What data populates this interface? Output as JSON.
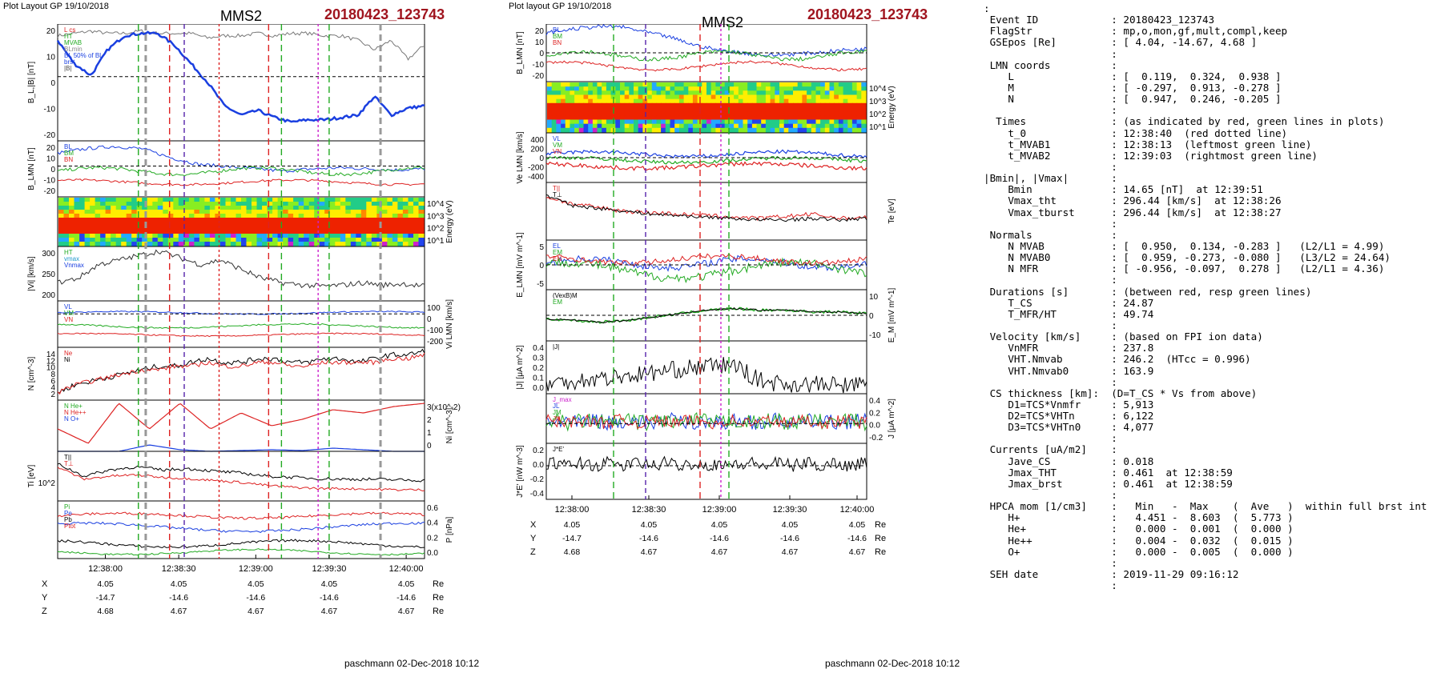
{
  "left_figure": {
    "header": "Plot Layout GP 19/10/2018",
    "title": "MMS2",
    "event": "20180423_123743",
    "footer": "paschmann 02-Dec-2018 10:12",
    "time_ticks": [
      "12:38:00",
      "12:38:30",
      "12:39:00",
      "12:39:30",
      "12:40:00"
    ],
    "ephem": [
      {
        "label": "X",
        "values": [
          "4.05",
          "4.05",
          "4.05",
          "4.05",
          "4.05"
        ],
        "unit": "Re"
      },
      {
        "label": "Y",
        "values": [
          "-14.7",
          "-14.6",
          "-14.6",
          "-14.6",
          "-14.6"
        ],
        "unit": "Re"
      },
      {
        "label": "Z",
        "values": [
          "4.68",
          "4.67",
          "4.67",
          "4.67",
          "4.67"
        ],
        "unit": "Re"
      }
    ],
    "panels": [
      {
        "ylabel": "B_L,|B| [nT]",
        "side": "left",
        "ticks": [
          "20",
          "10",
          "0",
          "-10",
          "-20"
        ],
        "legend": [
          "L cs",
          "HT",
          "MVAB",
          "BLmin",
          "BL 50% of BL",
          "brst",
          "|B|"
        ]
      },
      {
        "ylabel": "B_LMN [nT]",
        "side": "left",
        "ticks": [
          "20",
          "10",
          "0",
          "-10",
          "-20"
        ],
        "legend": [
          "BL",
          "BM",
          "BN"
        ]
      },
      {
        "ylabel": "Energy (eV)",
        "side": "right",
        "ticks": [
          "10^4",
          "10^3",
          "10^2",
          "10^1"
        ]
      },
      {
        "ylabel": "|Vi| [km/s]",
        "side": "left",
        "ticks": [
          "300",
          "250",
          "200"
        ],
        "legend": [
          "HT",
          "vmax",
          "Vnmax"
        ]
      },
      {
        "ylabel": "Vi LMN [km/s]",
        "side": "right",
        "ticks": [
          "100",
          "0",
          "-100",
          "-200"
        ],
        "legend": [
          "VL",
          "VM",
          "VN"
        ]
      },
      {
        "ylabel": "N [cm^-3]",
        "side": "left",
        "ticks": [
          "14",
          "12",
          "10",
          "8",
          "6",
          "4",
          "2"
        ],
        "legend": [
          "Ne",
          "Ni"
        ]
      },
      {
        "ylabel": "Ni [cm^-3]",
        "side": "right",
        "ticks": [
          "3(x10^-2)",
          "2",
          "1",
          "0"
        ],
        "legend": [
          "N He+",
          "N He++",
          "N O+"
        ]
      },
      {
        "ylabel": "Ti [eV]",
        "side": "left",
        "ticks": [
          "10^2"
        ],
        "legend": [
          "T||",
          "T⊥"
        ]
      },
      {
        "ylabel": "P [nPa]",
        "side": "right",
        "ticks": [
          "0.6",
          "0.4",
          "0.2",
          "0.0"
        ],
        "legend": [
          "Pi",
          "Pe",
          "Pb",
          "Ptot"
        ]
      }
    ]
  },
  "middle_figure": {
    "header": "Plot layout GP 19/10/2018",
    "title": "MMS2",
    "event": "20180423_123743",
    "footer": "paschmann 02-Dec-2018 10:12",
    "time_ticks": [
      "12:38:00",
      "12:38:30",
      "12:39:00",
      "12:39:30",
      "12:40:00"
    ],
    "ephem": [
      {
        "label": "X",
        "values": [
          "4.05",
          "4.05",
          "4.05",
          "4.05",
          "4.05"
        ],
        "unit": "Re"
      },
      {
        "label": "Y",
        "values": [
          "-14.7",
          "-14.6",
          "-14.6",
          "-14.6",
          "-14.6"
        ],
        "unit": "Re"
      },
      {
        "label": "Z",
        "values": [
          "4.68",
          "4.67",
          "4.67",
          "4.67",
          "4.67"
        ],
        "unit": "Re"
      }
    ],
    "panels": [
      {
        "ylabel": "B_LMN [nT]",
        "side": "left",
        "ticks": [
          "20",
          "10",
          "0",
          "-10",
          "-20"
        ],
        "legend": [
          "BL",
          "BM",
          "BN"
        ]
      },
      {
        "ylabel": "Energy (eV)",
        "side": "right",
        "ticks": [
          "10^4",
          "10^3",
          "10^2",
          "10^1"
        ]
      },
      {
        "ylabel": "Ve LMN [km/s]",
        "side": "left",
        "ticks": [
          "400",
          "200",
          "0",
          "-200",
          "-400"
        ],
        "legend": [
          "VL",
          "VM",
          "VN"
        ]
      },
      {
        "ylabel": "Te [eV]",
        "side": "right",
        "ticks": [],
        "legend": [
          "T||",
          "T⊥"
        ]
      },
      {
        "ylabel": "E_LMN [mV m^-1]",
        "side": "left",
        "ticks": [
          "5",
          "0",
          "-5"
        ],
        "legend": [
          "EL",
          "EM",
          "EN"
        ]
      },
      {
        "ylabel": "E_M [mV m^-1]",
        "side": "right",
        "ticks": [
          "10",
          "0",
          "-10"
        ],
        "legend": [
          "(VexB)M",
          "EM"
        ]
      },
      {
        "ylabel": "|J| [μA m^-2]",
        "side": "left",
        "ticks": [
          "0.4",
          "0.3",
          "0.2",
          "0.1",
          "0.0"
        ],
        "legend": [
          "|J|"
        ]
      },
      {
        "ylabel": "J [μA m^-2]",
        "side": "right",
        "ticks": [
          "0.4",
          "0.2",
          "0.0",
          "-0.2"
        ],
        "legend": [
          "J_max",
          "JL",
          "JM",
          "JN"
        ]
      },
      {
        "ylabel": "J*E' [nW m^-3]",
        "side": "left",
        "ticks": [
          "0.2",
          "0.0",
          "-0.2",
          "-0.4"
        ],
        "legend": [
          "J*E'"
        ]
      }
    ]
  },
  "info_panel": {
    "lines": [
      ":",
      " Event ID            : 20180423_123743",
      " FlagStr             : mp,o,mon,gf,mult,compl,keep",
      " GSEpos [Re]         : [ 4.04, -14.67, 4.68 ]",
      "                     :",
      " LMN coords          :",
      "    L                : [  0.119,  0.324,  0.938 ]",
      "    M                : [ -0.297,  0.913, -0.278 ]",
      "    N                : [  0.947,  0.246, -0.205 ]",
      "                     :",
      "  Times              : (as indicated by red, green lines in plots)",
      "    t_0              : 12:38:40  (red dotted line)",
      "    t_MVAB1          : 12:38:13  (leftmost green line)",
      "    t_MVAB2          : 12:39:03  (rightmost green line)",
      "                     :",
      "|Bmin|, |Vmax|       :",
      "    Bmin             : 14.65 [nT]  at 12:39:51",
      "    Vmax_tht         : 296.44 [km/s]  at 12:38:26",
      "    Vmax_tburst      : 296.44 [km/s]  at 12:38:27",
      "                     :",
      " Normals             :",
      "    N MVAB           : [  0.950,  0.134, -0.283 ]   (L2/L1 = 4.99)",
      "    N MVAB0          : [  0.959, -0.273, -0.080 ]   (L3/L2 = 24.64)",
      "    N MFR            : [ -0.956, -0.097,  0.278 ]   (L2/L1 = 4.36)",
      "                     :",
      " Durations [s]       : (between red, resp green lines)",
      "    T_CS             : 24.87",
      "    T_MFR/HT         : 49.74",
      "                     :",
      " Velocity [km/s]     : (based on FPI ion data)",
      "    VnMFR            : 237.8",
      "    VHT.Nmvab        : 246.2  (HTcc = 0.996)",
      "    VHT.Nmvab0       : 163.9",
      "                     :",
      " CS thickness [km]:  (D=T_CS * Vs from above)",
      "    D1=TCS*Vnmfr     : 5,913",
      "    D2=TCS*VHTn      : 6,122",
      "    D3=TCS*VHTn0     : 4,077",
      "                     :",
      " Currents [uA/m2]    :",
      "    Jave_CS          : 0.018",
      "    Jmax_THT         : 0.461  at 12:38:59",
      "    Jmax_brst        : 0.461  at 12:38:59",
      "                     :",
      " HPCA mom [1/cm3]    :   Min   -  Max    (  Ave   )  within full brst int",
      "    H+               :   4.451 -  8.603  (  5.773 )",
      "    He+              :   0.000 -  0.001  (  0.000 )",
      "    He++             :   0.004 -  0.032  (  0.015 )",
      "    O+               :   0.000 -  0.005  (  0.000 )",
      "                     :",
      " SEH date            : 2019-11-29 09:16:12",
      "                     :"
    ]
  },
  "chart_data": [
    {
      "type": "line",
      "title": "MMS2",
      "subtitle": "20180423_123743",
      "x_ticks": [
        "12:38:00",
        "12:38:30",
        "12:39:00",
        "12:39:30",
        "12:40:00"
      ],
      "markers": [
        {
          "name": "t_MVAB1",
          "time": "12:38:13",
          "color": "#22aa22",
          "style": "dashed"
        },
        {
          "name": "t_0",
          "time": "12:38:40",
          "color": "#dd2222",
          "style": "dotted"
        },
        {
          "name": "t_MVAB2",
          "time": "12:39:03",
          "color": "#22aa22",
          "style": "dashed"
        }
      ],
      "series": [
        {
          "name": "BL",
          "color": "#1a3fe0",
          "values": [
            18,
            8,
            3,
            14,
            20,
            21,
            21,
            16,
            8,
            0,
            -10,
            -14,
            -12,
            -15,
            -17,
            -16,
            -16,
            -15,
            -14,
            -6,
            -14,
            -11,
            -10
          ]
        },
        {
          "name": "|B|",
          "color": "#777777",
          "values": [
            20,
            21,
            22,
            21,
            21,
            22,
            21,
            21,
            21,
            19,
            20,
            20,
            21,
            20,
            21,
            21,
            20,
            20,
            18,
            14,
            18,
            10,
            16
          ]
        },
        {
          "name": "Ni",
          "color": "#000000",
          "values": [
            3,
            5,
            6,
            7,
            8,
            9,
            10,
            10,
            11,
            12,
            11,
            11,
            12,
            12,
            11,
            11,
            12,
            12,
            11,
            12,
            13,
            13,
            14
          ]
        },
        {
          "name": "Ne",
          "color": "#dd2222",
          "values": [
            3,
            5,
            6,
            7,
            8,
            9,
            9,
            10,
            10,
            11,
            10,
            10,
            11,
            11,
            10,
            10,
            11,
            11,
            11,
            11,
            12,
            12,
            13
          ]
        },
        {
          "name": "N He++",
          "color": "#dd2222",
          "values": [
            1.4,
            0.5,
            3.0,
            1.4,
            3.0,
            1.4,
            2.4,
            1.6,
            2.0,
            2.6,
            2.4,
            2.8,
            3.0
          ]
        }
      ],
      "color_scheme": "red-yellow-green-blue spectrogram"
    }
  ]
}
